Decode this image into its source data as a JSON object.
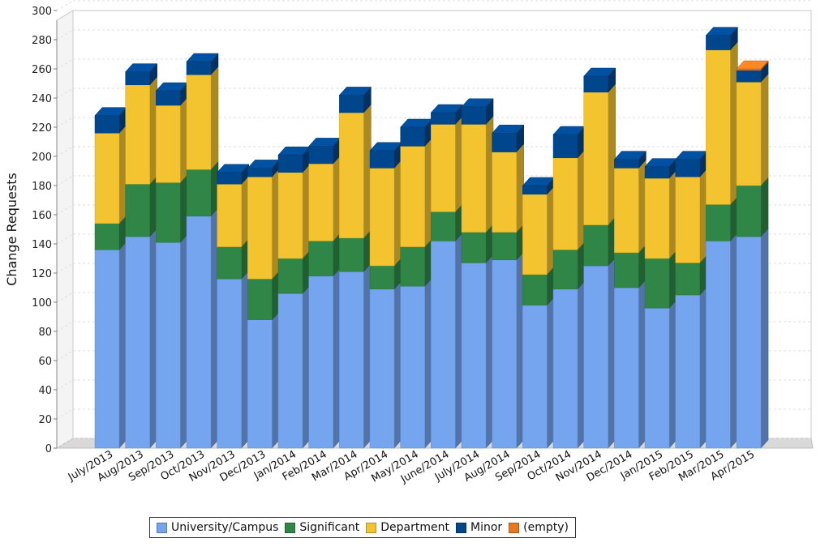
{
  "chart_data": {
    "type": "bar",
    "stacked": true,
    "style": "3d",
    "title": "",
    "xlabel": "",
    "ylabel": "Change Requests",
    "ylim": [
      0,
      300
    ],
    "yticks": [
      0,
      20,
      40,
      60,
      80,
      100,
      120,
      140,
      160,
      180,
      200,
      220,
      240,
      260,
      280,
      300
    ],
    "grid": true,
    "legend_position": "bottom",
    "categories": [
      "July/2013",
      "Aug/2013",
      "Sep/2013",
      "Oct/2013",
      "Nov/2013",
      "Dec/2013",
      "Jan/2014",
      "Feb/2014",
      "Mar/2014",
      "Apr/2014",
      "May/2014",
      "June/2014",
      "July/2014",
      "Aug/2014",
      "Sep/2014",
      "Oct/2014",
      "Nov/2014",
      "Dec/2014",
      "Jan/2015",
      "Feb/2015",
      "Mar/2015",
      "Apr/2015"
    ],
    "series": [
      {
        "name": "University/Campus",
        "color": "#75a5ee",
        "values": [
          136,
          145,
          141,
          159,
          116,
          88,
          106,
          118,
          121,
          109,
          111,
          142,
          127,
          129,
          98,
          109,
          125,
          110,
          96,
          105,
          142,
          145
        ]
      },
      {
        "name": "Significant",
        "color": "#2f8647",
        "values": [
          18,
          36,
          41,
          32,
          22,
          28,
          24,
          24,
          23,
          16,
          27,
          20,
          21,
          19,
          21,
          27,
          28,
          24,
          34,
          22,
          25,
          35
        ]
      },
      {
        "name": "Department",
        "color": "#f4c430",
        "values": [
          62,
          68,
          53,
          65,
          43,
          70,
          59,
          53,
          86,
          67,
          69,
          60,
          74,
          55,
          55,
          63,
          91,
          58,
          55,
          59,
          106,
          71
        ]
      },
      {
        "name": "Minor",
        "color": "#00468c",
        "values": [
          12,
          9,
          10,
          9,
          8,
          6,
          12,
          12,
          12,
          12,
          13,
          8,
          12,
          13,
          6,
          16,
          11,
          6,
          8,
          12,
          10,
          8
        ]
      },
      {
        "name": "(empty)",
        "color": "#e8771f",
        "values": [
          0,
          0,
          0,
          0,
          0,
          0,
          0,
          0,
          0,
          0,
          0,
          0,
          0,
          0,
          0,
          0,
          0,
          0,
          0,
          0,
          0,
          1
        ]
      }
    ]
  }
}
